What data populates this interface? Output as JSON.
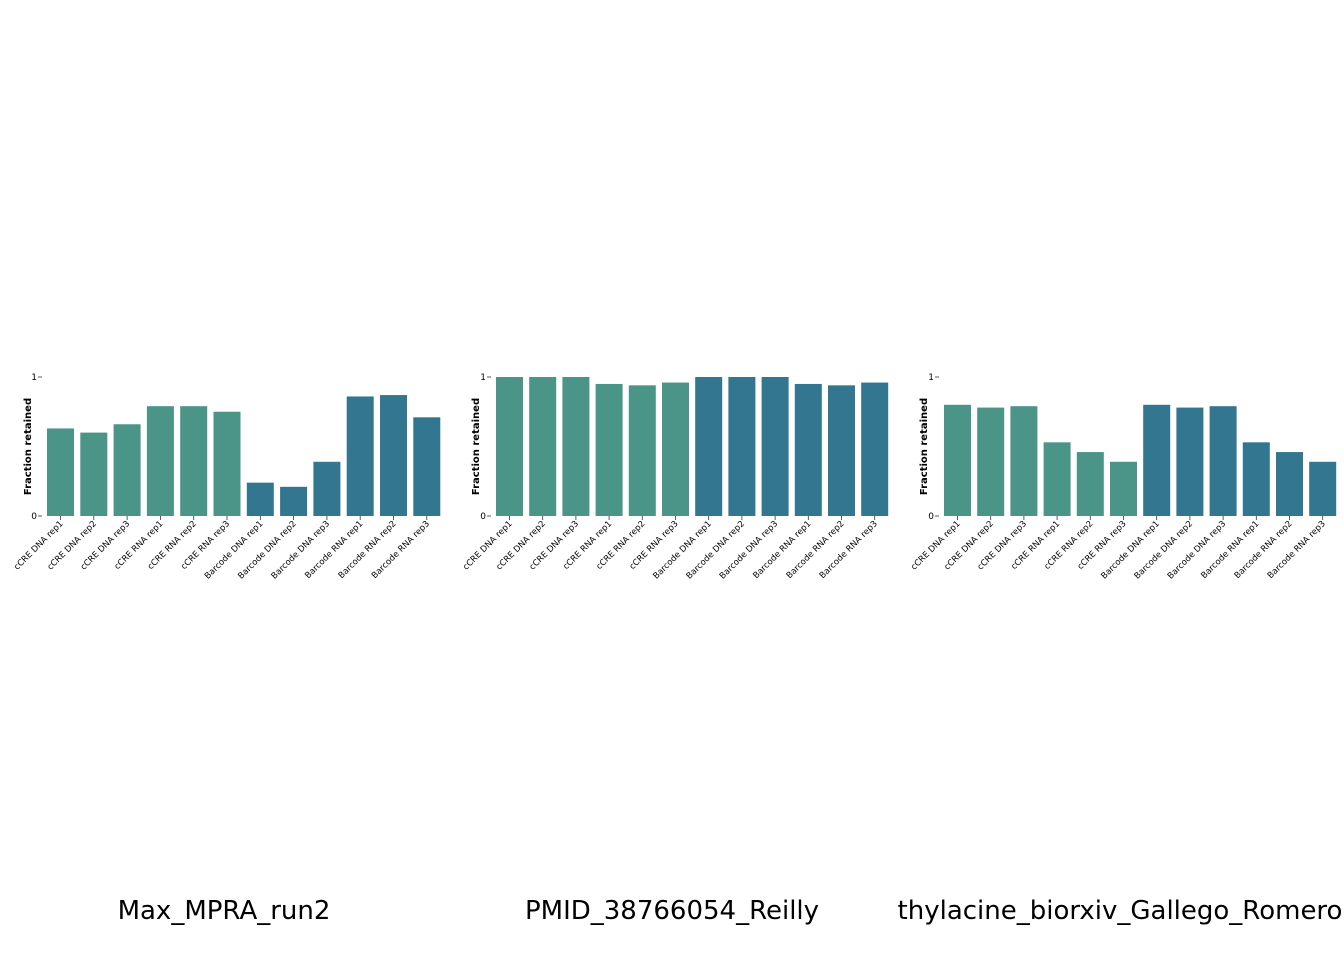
{
  "chart_data": [
    {
      "type": "bar",
      "title": "Max_MPRA_run2",
      "ylabel": "Fraction retained",
      "xlabel": "",
      "ylim": [
        0,
        1
      ],
      "yticks": [
        "0",
        "1"
      ],
      "categories": [
        "cCRE DNA rep1",
        "cCRE DNA rep2",
        "cCRE DNA rep3",
        "cCRE RNA rep1",
        "cCRE RNA rep2",
        "cCRE RNA rep3",
        "Barcode DNA rep1",
        "Barcode DNA rep2",
        "Barcode DNA rep3",
        "Barcode RNA rep1",
        "Barcode RNA rep2",
        "Barcode RNA rep3"
      ],
      "values": [
        0.63,
        0.6,
        0.66,
        0.79,
        0.79,
        0.75,
        0.24,
        0.21,
        0.39,
        0.86,
        0.87,
        0.71
      ],
      "colors": [
        "#4a9488",
        "#4a9488",
        "#4a9488",
        "#4a9488",
        "#4a9488",
        "#4a9488",
        "#327690",
        "#327690",
        "#327690",
        "#327690",
        "#327690",
        "#327690"
      ]
    },
    {
      "type": "bar",
      "title": "PMID_38766054_Reilly",
      "ylabel": "Fraction retained",
      "xlabel": "",
      "ylim": [
        0,
        1
      ],
      "yticks": [
        "0",
        "1"
      ],
      "categories": [
        "cCRE DNA rep1",
        "cCRE DNA rep2",
        "cCRE DNA rep3",
        "cCRE RNA rep1",
        "cCRE RNA rep2",
        "cCRE RNA rep3",
        "Barcode DNA rep1",
        "Barcode DNA rep2",
        "Barcode DNA rep3",
        "Barcode RNA rep1",
        "Barcode RNA rep2",
        "Barcode RNA rep3"
      ],
      "values": [
        1.0,
        1.0,
        1.0,
        0.95,
        0.94,
        0.96,
        1.0,
        1.0,
        1.0,
        0.95,
        0.94,
        0.96
      ],
      "colors": [
        "#4a9488",
        "#4a9488",
        "#4a9488",
        "#4a9488",
        "#4a9488",
        "#4a9488",
        "#327690",
        "#327690",
        "#327690",
        "#327690",
        "#327690",
        "#327690"
      ]
    },
    {
      "type": "bar",
      "title": "thylacine_biorxiv_Gallego_Romero",
      "ylabel": "Fraction retained",
      "xlabel": "",
      "ylim": [
        0,
        1
      ],
      "yticks": [
        "0",
        "1"
      ],
      "categories": [
        "cCRE DNA rep1",
        "cCRE DNA rep2",
        "cCRE DNA rep3",
        "cCRE RNA rep1",
        "cCRE RNA rep2",
        "cCRE RNA rep3",
        "Barcode DNA rep1",
        "Barcode DNA rep2",
        "Barcode DNA rep3",
        "Barcode RNA rep1",
        "Barcode RNA rep2",
        "Barcode RNA rep3"
      ],
      "values": [
        0.8,
        0.78,
        0.79,
        0.53,
        0.46,
        0.39,
        0.8,
        0.78,
        0.79,
        0.53,
        0.46,
        0.39
      ],
      "colors": [
        "#4a9488",
        "#4a9488",
        "#4a9488",
        "#4a9488",
        "#4a9488",
        "#4a9488",
        "#327690",
        "#327690",
        "#327690",
        "#327690",
        "#327690",
        "#327690"
      ]
    }
  ]
}
